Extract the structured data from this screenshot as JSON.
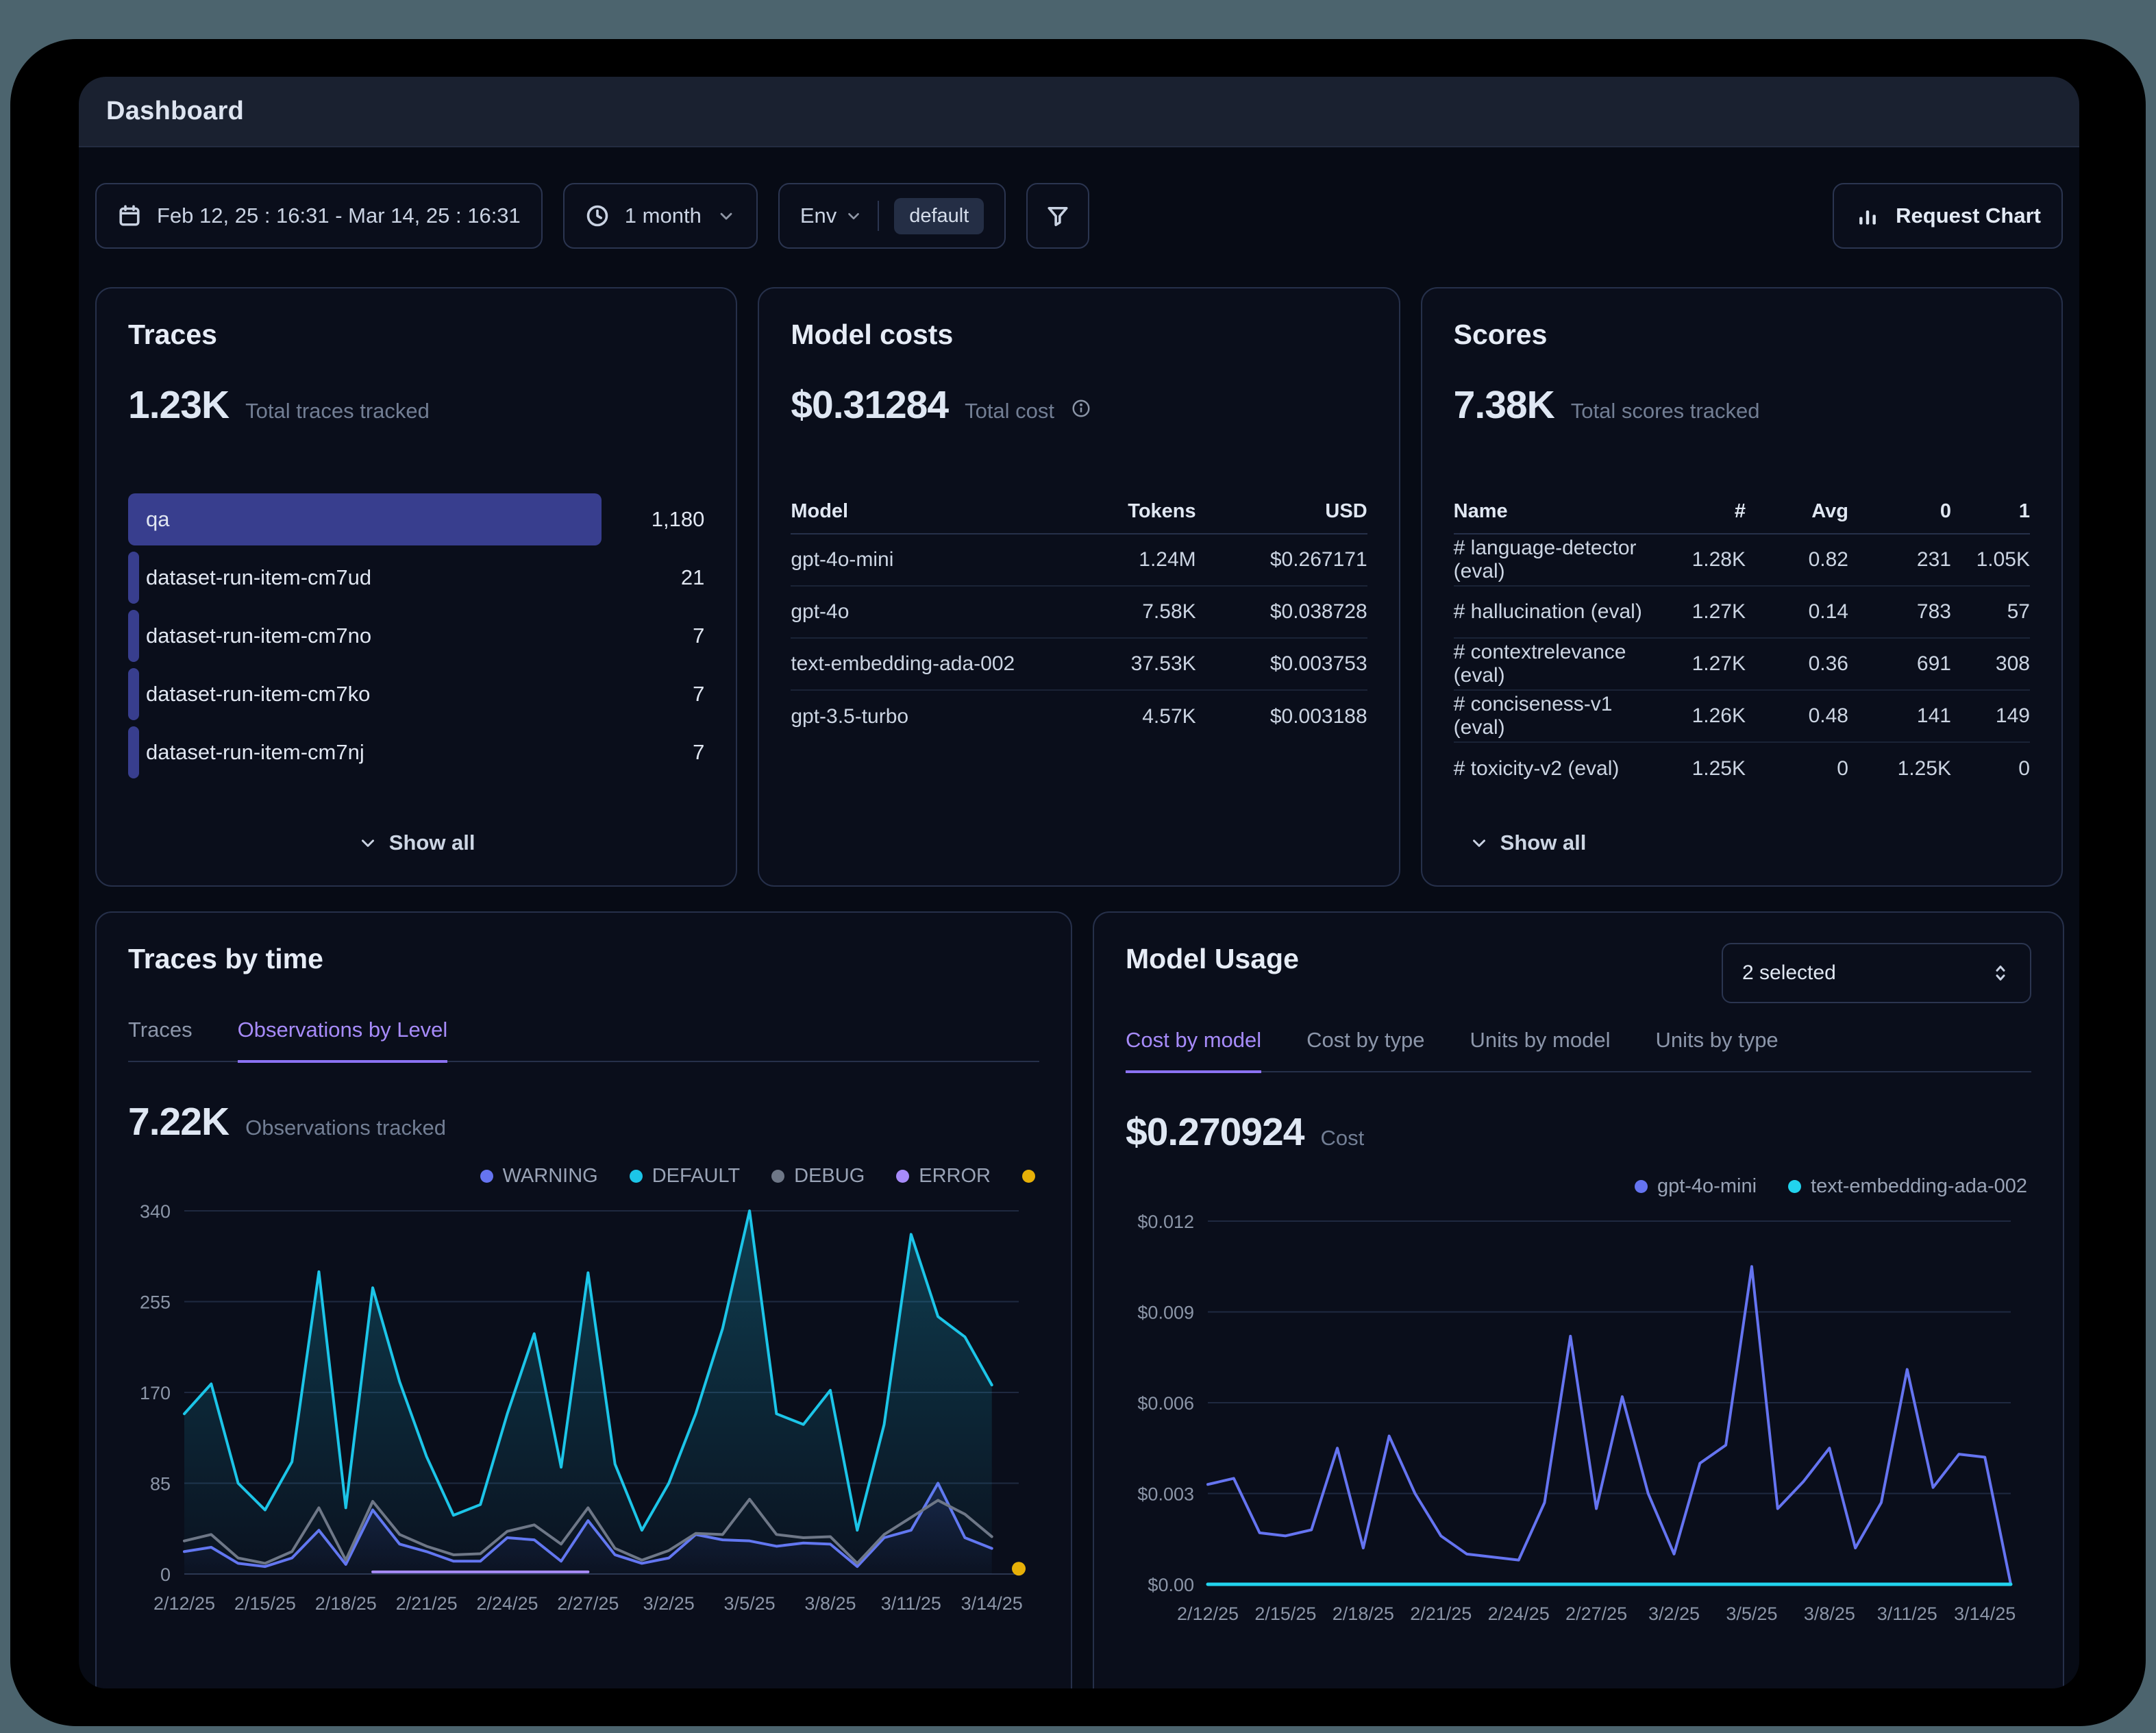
{
  "window": {
    "title": "Dashboard"
  },
  "toolbar": {
    "date_range": "Feb 12, 25 : 16:31 - Mar 14, 25 : 16:31",
    "interval": "1 month",
    "env_label": "Env",
    "env_value": "default",
    "request_chart_label": "Request Chart"
  },
  "cards": {
    "traces": {
      "title": "Traces",
      "stat": "1.23K",
      "stat_label": "Total traces tracked",
      "show_all": "Show all",
      "bar_color": "#383e8e",
      "items": [
        {
          "label": "qa",
          "value": 1180,
          "display": "1,180"
        },
        {
          "label": "dataset-run-item-cm7ud",
          "value": 21,
          "display": "21"
        },
        {
          "label": "dataset-run-item-cm7no",
          "value": 7,
          "display": "7"
        },
        {
          "label": "dataset-run-item-cm7ko",
          "value": 7,
          "display": "7"
        },
        {
          "label": "dataset-run-item-cm7nj",
          "value": 7,
          "display": "7"
        }
      ]
    },
    "model_costs": {
      "title": "Model costs",
      "stat": "$0.31284",
      "stat_label": "Total cost",
      "columns": [
        "Model",
        "Tokens",
        "USD"
      ],
      "rows": [
        [
          "gpt-4o-mini",
          "1.24M",
          "$0.267171"
        ],
        [
          "gpt-4o",
          "7.58K",
          "$0.038728"
        ],
        [
          "text-embedding-ada-002",
          "37.53K",
          "$0.003753"
        ],
        [
          "gpt-3.5-turbo",
          "4.57K",
          "$0.003188"
        ]
      ]
    },
    "scores": {
      "title": "Scores",
      "stat": "7.38K",
      "stat_label": "Total scores tracked",
      "show_all": "Show all",
      "columns": [
        "Name",
        "#",
        "Avg",
        "0",
        "1"
      ],
      "rows": [
        [
          "# language-detector (eval)",
          "1.28K",
          "0.82",
          "231",
          "1.05K"
        ],
        [
          "# hallucination (eval)",
          "1.27K",
          "0.14",
          "783",
          "57"
        ],
        [
          "# contextrelevance (eval)",
          "1.27K",
          "0.36",
          "691",
          "308"
        ],
        [
          "# conciseness-v1 (eval)",
          "1.26K",
          "0.48",
          "141",
          "149"
        ],
        [
          "# toxicity-v2 (eval)",
          "1.25K",
          "0",
          "1.25K",
          "0"
        ]
      ]
    },
    "traces_by_time": {
      "title": "Traces by time",
      "tabs": [
        "Traces",
        "Observations by Level"
      ],
      "active_tab": 1,
      "stat": "7.22K",
      "stat_label": "Observations tracked"
    },
    "model_usage": {
      "title": "Model Usage",
      "select_value": "2 selected",
      "tabs": [
        "Cost by model",
        "Cost by type",
        "Units by model",
        "Units by type"
      ],
      "active_tab": 0,
      "stat": "$0.270924",
      "stat_label": "Cost"
    }
  },
  "chart_data": [
    {
      "id": "observations-by-level",
      "type": "line",
      "title": "Observations by Level",
      "x_ticks": [
        "2/12/25",
        "2/15/25",
        "2/18/25",
        "2/21/25",
        "2/24/25",
        "2/27/25",
        "3/2/25",
        "3/5/25",
        "3/8/25",
        "3/11/25",
        "3/14/25"
      ],
      "tick_every": 3,
      "x_slots": 32,
      "ylim": [
        0,
        340
      ],
      "y_ticks": [
        0,
        85,
        170,
        255,
        340
      ],
      "grid": true,
      "legend_position": "top-right",
      "series": [
        {
          "name": "WARNING",
          "color": "#6574f1",
          "area": true,
          "area_color": "#3a3f9a",
          "values": [
            21,
            25,
            10,
            7,
            15,
            41,
            9,
            60,
            28,
            21,
            12,
            12,
            34,
            32,
            12,
            50,
            18,
            10,
            15,
            37,
            32,
            31,
            26,
            29,
            28,
            7,
            34,
            41,
            85,
            34,
            24
          ]
        },
        {
          "name": "DEFAULT",
          "color": "#1cc5e8",
          "area": true,
          "area_color": "#1cc5e8",
          "values": [
            150,
            178,
            85,
            60,
            105,
            283,
            62,
            268,
            180,
            110,
            55,
            65,
            150,
            225,
            100,
            282,
            103,
            41,
            85,
            150,
            230,
            340,
            150,
            140,
            172,
            41,
            140,
            318,
            241,
            222,
            177
          ]
        },
        {
          "name": "DEBUG",
          "color": "#6e7787",
          "values": [
            31,
            37,
            15,
            10,
            21,
            62,
            13,
            68,
            37,
            26,
            18,
            19,
            40,
            46,
            28,
            62,
            24,
            13,
            22,
            38,
            37,
            70,
            37,
            34,
            35,
            10,
            37,
            53,
            69,
            56,
            35
          ]
        },
        {
          "name": "ERROR",
          "color": "#a78bfa",
          "values": [
            null,
            null,
            null,
            null,
            null,
            null,
            null,
            2,
            2,
            2,
            2,
            2,
            2,
            2,
            2,
            2,
            null,
            null,
            null,
            null,
            null,
            null,
            null,
            null,
            null,
            null,
            null,
            null,
            null,
            null,
            null
          ]
        },
        {
          "name": "",
          "color": "#e7b008",
          "values": [
            null,
            null,
            null,
            null,
            null,
            null,
            null,
            null,
            null,
            null,
            null,
            null,
            null,
            null,
            null,
            null,
            null,
            null,
            null,
            null,
            null,
            null,
            null,
            null,
            null,
            null,
            null,
            null,
            null,
            null,
            null,
            5
          ]
        }
      ]
    },
    {
      "id": "model-usage-cost",
      "type": "line",
      "title": "Cost by model",
      "x_ticks": [
        "2/12/25",
        "2/15/25",
        "2/18/25",
        "2/21/25",
        "2/24/25",
        "2/27/25",
        "3/2/25",
        "3/5/25",
        "3/8/25",
        "3/11/25",
        "3/14/25"
      ],
      "tick_every": 3,
      "x_slots": 32,
      "ylim": [
        0,
        0.012
      ],
      "y_ticks": [
        0,
        0.003,
        0.006,
        0.009,
        0.012
      ],
      "y_tick_labels": [
        "$0.00",
        "$0.003",
        "$0.006",
        "$0.009",
        "$0.012"
      ],
      "grid": true,
      "legend_position": "top-right",
      "series": [
        {
          "name": "gpt-4o-mini",
          "color": "#6574f1",
          "values": [
            0.0033,
            0.0035,
            0.0017,
            0.0016,
            0.0018,
            0.0045,
            0.0012,
            0.0049,
            0.003,
            0.0016,
            0.001,
            0.0009,
            0.0008,
            0.0027,
            0.0082,
            0.0025,
            0.0062,
            0.003,
            0.001,
            0.004,
            0.0046,
            0.0105,
            0.0025,
            0.0034,
            0.0045,
            0.0012,
            0.0027,
            0.0071,
            0.0032,
            0.0043,
            0.0042,
            0.0
          ]
        },
        {
          "name": "text-embedding-ada-002",
          "color": "#22d3ee",
          "width": 5,
          "values": [
            0,
            0,
            0,
            0,
            0,
            0,
            0,
            0,
            0,
            0,
            0,
            0,
            0,
            0,
            0,
            0,
            0,
            0,
            0,
            0,
            0,
            0,
            0,
            0,
            0,
            0,
            0,
            0,
            0,
            0,
            0,
            0
          ]
        }
      ]
    }
  ]
}
